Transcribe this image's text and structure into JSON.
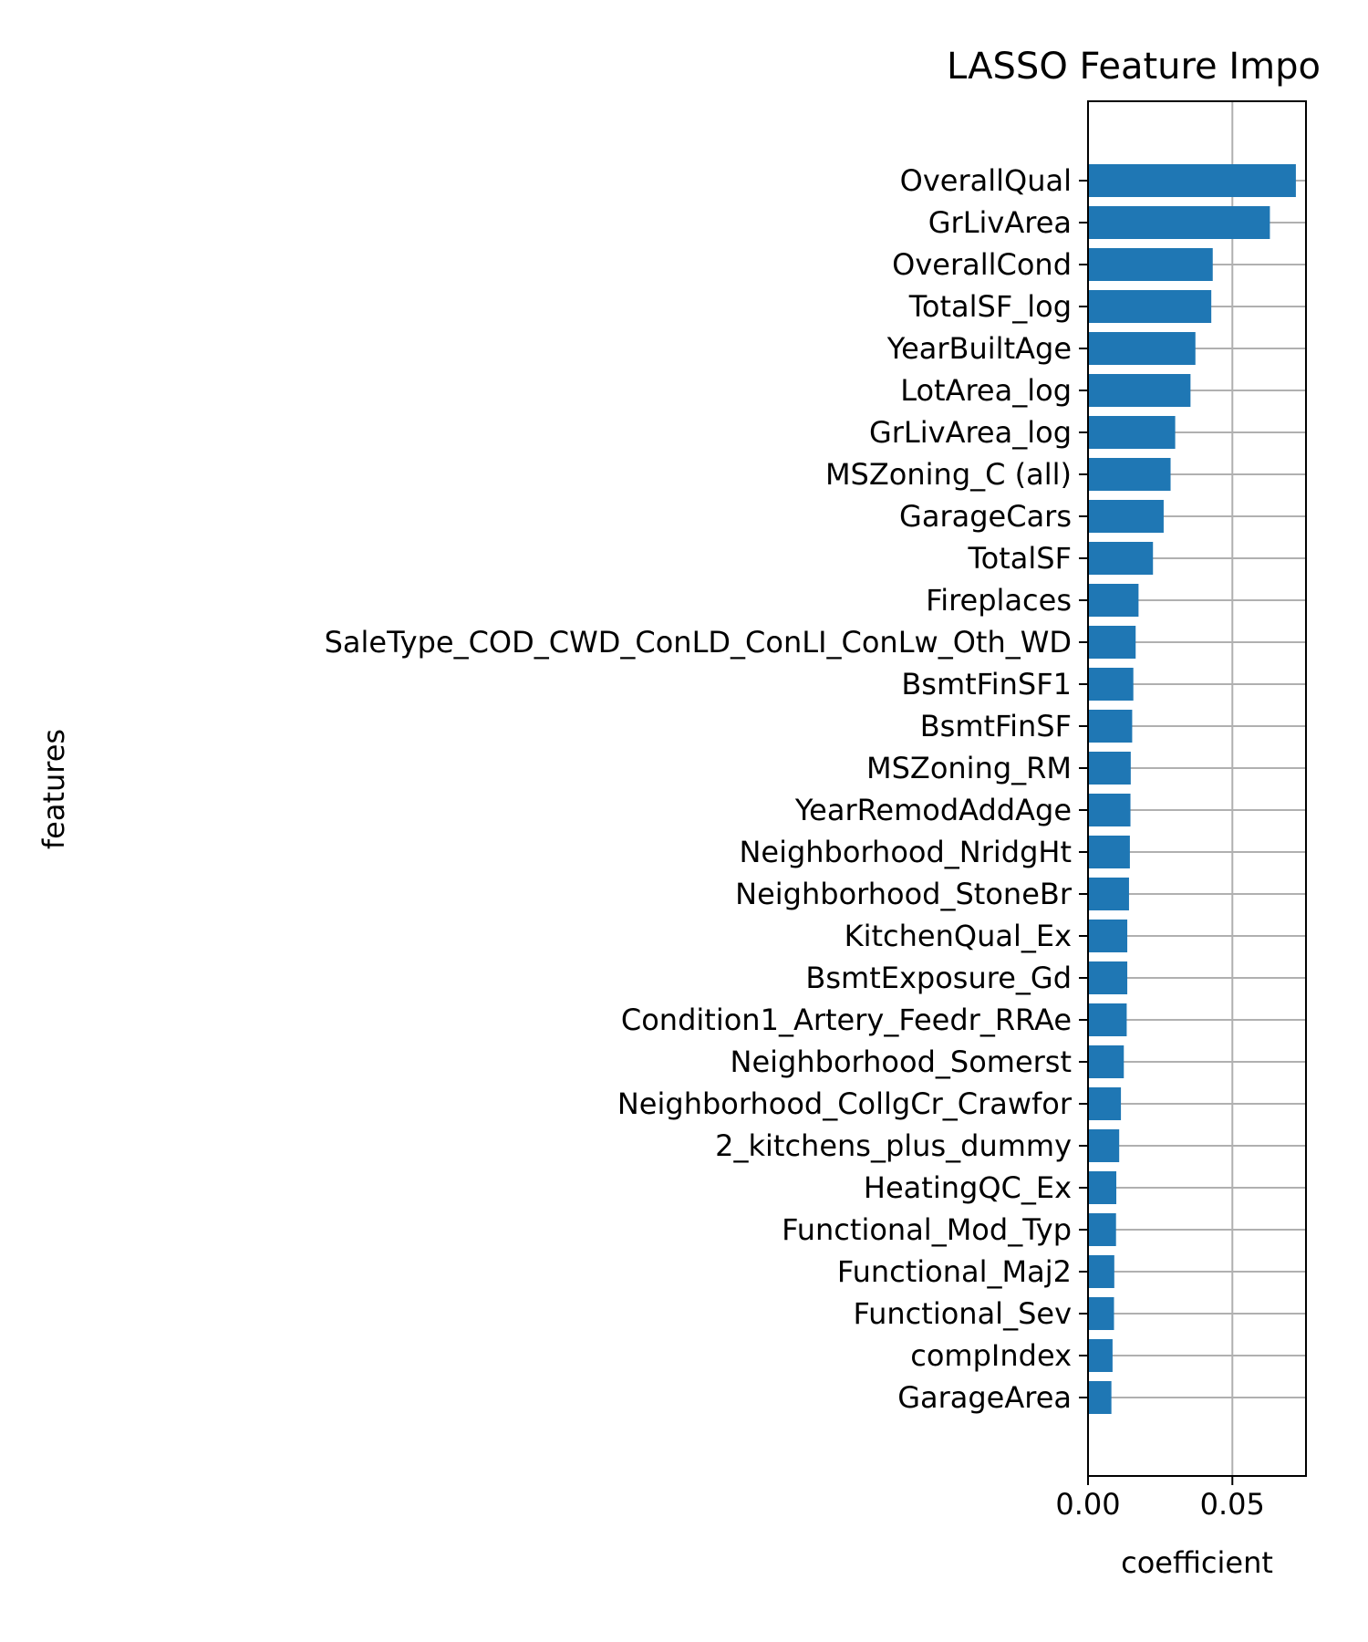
{
  "chart_data": {
    "type": "bar",
    "orientation": "horizontal",
    "title": "LASSO Feature Impo",
    "xlabel": "coefficient",
    "ylabel": "features",
    "xlim": [
      0,
      0.0755
    ],
    "xticks": [
      "0.00",
      "0.05"
    ],
    "xtick_values": [
      0,
      0.05
    ],
    "grid": true,
    "bar_color": "#1f77b4",
    "categories": [
      "OverallQual",
      "GrLivArea",
      "OverallCond",
      "TotalSF_log",
      "YearBuiltAge",
      "LotArea_log",
      "GrLivArea_log",
      "MSZoning_C (all)",
      "GarageCars",
      "TotalSF",
      "Fireplaces",
      "SaleType_COD_CWD_ConLD_ConLI_ConLw_Oth_WD",
      "BsmtFinSF1",
      "BsmtFinSF",
      "MSZoning_RM",
      "YearRemodAddAge",
      "Neighborhood_NridgHt",
      "Neighborhood_StoneBr",
      "KitchenQual_Ex",
      "BsmtExposure_Gd",
      "Condition1_Artery_Feedr_RRAe",
      "Neighborhood_Somerst",
      "Neighborhood_CollgCr_Crawfor",
      "2_kitchens_plus_dummy",
      "HeatingQC_Ex",
      "Functional_Mod_Typ",
      "Functional_Maj2",
      "Functional_Sev",
      "compIndex",
      "GarageArea"
    ],
    "values": [
      0.072,
      0.063,
      0.0432,
      0.0427,
      0.0372,
      0.0355,
      0.0302,
      0.0286,
      0.0262,
      0.0225,
      0.0175,
      0.0165,
      0.0157,
      0.0153,
      0.0148,
      0.0147,
      0.0145,
      0.0142,
      0.0136,
      0.0136,
      0.0134,
      0.0124,
      0.0114,
      0.0108,
      0.0098,
      0.0097,
      0.0091,
      0.009,
      0.0085,
      0.0081
    ]
  }
}
